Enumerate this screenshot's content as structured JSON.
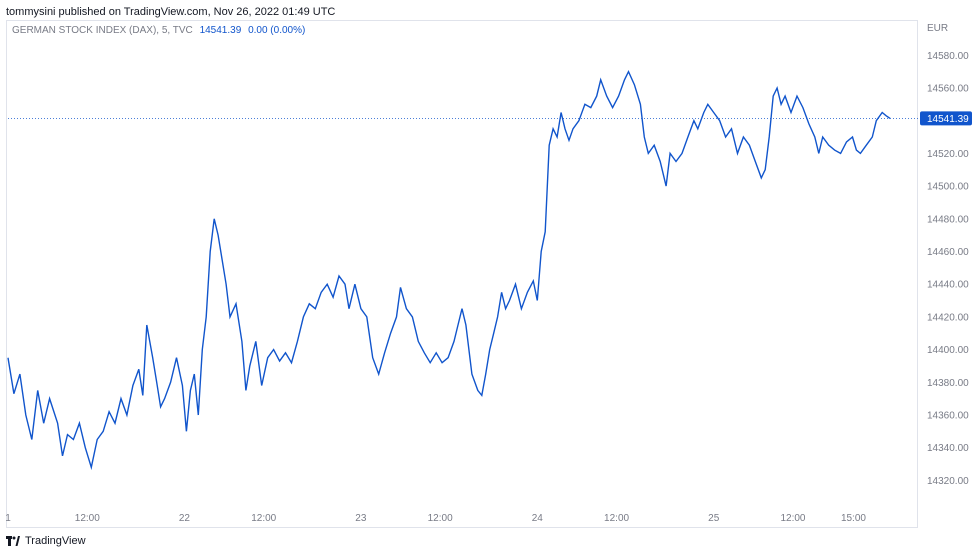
{
  "header": {
    "text": "tommysini published on TradingView.com, Nov 26, 2022 01:49 UTC"
  },
  "legend": {
    "symbol": "GERMAN STOCK INDEX (DAX), 5, TVC",
    "last": "14541.39",
    "change": "0.00 (0.00%)"
  },
  "footer": {
    "brand": "TradingView"
  },
  "colors": {
    "line": "#1155cc",
    "grid": "#e0e3eb",
    "axis_text": "#787b86"
  },
  "chart_data": {
    "type": "line",
    "currency": "EUR",
    "last_value": 14541.39,
    "last_value_label": "14541.39",
    "y_ticks": [
      14580,
      14560,
      14540,
      14520,
      14500,
      14480,
      14460,
      14440,
      14420,
      14400,
      14380,
      14360,
      14340,
      14320
    ],
    "y_tick_labels": [
      "14580.00",
      "14560.00",
      "14540.00",
      "14520.00",
      "14500.00",
      "14480.00",
      "14460.00",
      "14440.00",
      "14420.00",
      "14400.00",
      "14380.00",
      "14360.00",
      "14340.00",
      "14320.00"
    ],
    "ylim": [
      14308,
      14593
    ],
    "x_ticks": [
      {
        "label": "1",
        "idx": 0
      },
      {
        "label": "12:00",
        "idx": 80
      },
      {
        "label": "22",
        "idx": 178
      },
      {
        "label": "12:00",
        "idx": 258
      },
      {
        "label": "23",
        "idx": 356
      },
      {
        "label": "12:00",
        "idx": 436
      },
      {
        "label": "24",
        "idx": 534
      },
      {
        "label": "12:00",
        "idx": 614
      },
      {
        "label": "25",
        "idx": 712
      },
      {
        "label": "12:00",
        "idx": 792
      },
      {
        "label": "15:00",
        "idx": 853
      }
    ],
    "series": [
      {
        "points": [
          [
            0,
            14395
          ],
          [
            6,
            14373
          ],
          [
            12,
            14385
          ],
          [
            18,
            14360
          ],
          [
            24,
            14345
          ],
          [
            30,
            14375
          ],
          [
            36,
            14355
          ],
          [
            42,
            14370
          ],
          [
            50,
            14355
          ],
          [
            55,
            14335
          ],
          [
            60,
            14348
          ],
          [
            66,
            14345
          ],
          [
            72,
            14355
          ],
          [
            78,
            14340
          ],
          [
            84,
            14328
          ],
          [
            90,
            14345
          ],
          [
            96,
            14350
          ],
          [
            102,
            14362
          ],
          [
            108,
            14355
          ],
          [
            114,
            14370
          ],
          [
            120,
            14360
          ],
          [
            126,
            14378
          ],
          [
            132,
            14388
          ],
          [
            136,
            14372
          ],
          [
            140,
            14415
          ],
          [
            146,
            14395
          ],
          [
            150,
            14380
          ],
          [
            154,
            14365
          ],
          [
            158,
            14370
          ],
          [
            164,
            14380
          ],
          [
            170,
            14395
          ],
          [
            176,
            14378
          ],
          [
            180,
            14350
          ],
          [
            184,
            14375
          ],
          [
            188,
            14385
          ],
          [
            192,
            14360
          ],
          [
            196,
            14400
          ],
          [
            200,
            14420
          ],
          [
            204,
            14460
          ],
          [
            208,
            14480
          ],
          [
            212,
            14470
          ],
          [
            216,
            14455
          ],
          [
            220,
            14440
          ],
          [
            224,
            14420
          ],
          [
            230,
            14428
          ],
          [
            236,
            14405
          ],
          [
            240,
            14375
          ],
          [
            244,
            14390
          ],
          [
            250,
            14405
          ],
          [
            256,
            14378
          ],
          [
            262,
            14395
          ],
          [
            268,
            14400
          ],
          [
            274,
            14393
          ],
          [
            280,
            14398
          ],
          [
            286,
            14392
          ],
          [
            292,
            14405
          ],
          [
            298,
            14420
          ],
          [
            304,
            14428
          ],
          [
            310,
            14425
          ],
          [
            316,
            14435
          ],
          [
            322,
            14440
          ],
          [
            328,
            14432
          ],
          [
            334,
            14445
          ],
          [
            340,
            14440
          ],
          [
            344,
            14425
          ],
          [
            350,
            14440
          ],
          [
            356,
            14425
          ],
          [
            362,
            14420
          ],
          [
            368,
            14395
          ],
          [
            374,
            14385
          ],
          [
            380,
            14398
          ],
          [
            386,
            14410
          ],
          [
            392,
            14420
          ],
          [
            396,
            14438
          ],
          [
            402,
            14425
          ],
          [
            408,
            14420
          ],
          [
            414,
            14405
          ],
          [
            420,
            14398
          ],
          [
            426,
            14392
          ],
          [
            432,
            14398
          ],
          [
            438,
            14392
          ],
          [
            444,
            14395
          ],
          [
            450,
            14405
          ],
          [
            454,
            14415
          ],
          [
            458,
            14425
          ],
          [
            462,
            14415
          ],
          [
            468,
            14385
          ],
          [
            474,
            14375
          ],
          [
            478,
            14372
          ],
          [
            482,
            14385
          ],
          [
            486,
            14400
          ],
          [
            490,
            14410
          ],
          [
            494,
            14420
          ],
          [
            498,
            14435
          ],
          [
            502,
            14425
          ],
          [
            506,
            14430
          ],
          [
            512,
            14440
          ],
          [
            518,
            14425
          ],
          [
            524,
            14435
          ],
          [
            530,
            14442
          ],
          [
            534,
            14430
          ],
          [
            538,
            14460
          ],
          [
            542,
            14472
          ],
          [
            546,
            14525
          ],
          [
            550,
            14535
          ],
          [
            554,
            14530
          ],
          [
            558,
            14545
          ],
          [
            562,
            14535
          ],
          [
            566,
            14528
          ],
          [
            570,
            14535
          ],
          [
            576,
            14540
          ],
          [
            582,
            14550
          ],
          [
            588,
            14548
          ],
          [
            594,
            14555
          ],
          [
            598,
            14565
          ],
          [
            604,
            14555
          ],
          [
            610,
            14548
          ],
          [
            616,
            14555
          ],
          [
            622,
            14565
          ],
          [
            626,
            14570
          ],
          [
            632,
            14562
          ],
          [
            638,
            14550
          ],
          [
            642,
            14530
          ],
          [
            646,
            14520
          ],
          [
            652,
            14525
          ],
          [
            658,
            14515
          ],
          [
            664,
            14500
          ],
          [
            668,
            14520
          ],
          [
            674,
            14515
          ],
          [
            680,
            14520
          ],
          [
            686,
            14530
          ],
          [
            692,
            14540
          ],
          [
            696,
            14535
          ],
          [
            702,
            14545
          ],
          [
            706,
            14550
          ],
          [
            712,
            14545
          ],
          [
            718,
            14540
          ],
          [
            724,
            14530
          ],
          [
            730,
            14535
          ],
          [
            736,
            14520
          ],
          [
            742,
            14530
          ],
          [
            748,
            14525
          ],
          [
            754,
            14515
          ],
          [
            760,
            14505
          ],
          [
            764,
            14510
          ],
          [
            768,
            14530
          ],
          [
            772,
            14555
          ],
          [
            776,
            14560
          ],
          [
            780,
            14550
          ],
          [
            784,
            14555
          ],
          [
            790,
            14545
          ],
          [
            796,
            14555
          ],
          [
            802,
            14548
          ],
          [
            808,
            14538
          ],
          [
            814,
            14530
          ],
          [
            818,
            14520
          ],
          [
            822,
            14530
          ],
          [
            828,
            14525
          ],
          [
            834,
            14522
          ],
          [
            840,
            14520
          ],
          [
            846,
            14527
          ],
          [
            852,
            14530
          ],
          [
            856,
            14522
          ],
          [
            860,
            14520
          ],
          [
            866,
            14525
          ],
          [
            872,
            14530
          ],
          [
            876,
            14540
          ],
          [
            882,
            14545
          ],
          [
            886,
            14543
          ],
          [
            890,
            14541.39
          ]
        ]
      }
    ]
  }
}
